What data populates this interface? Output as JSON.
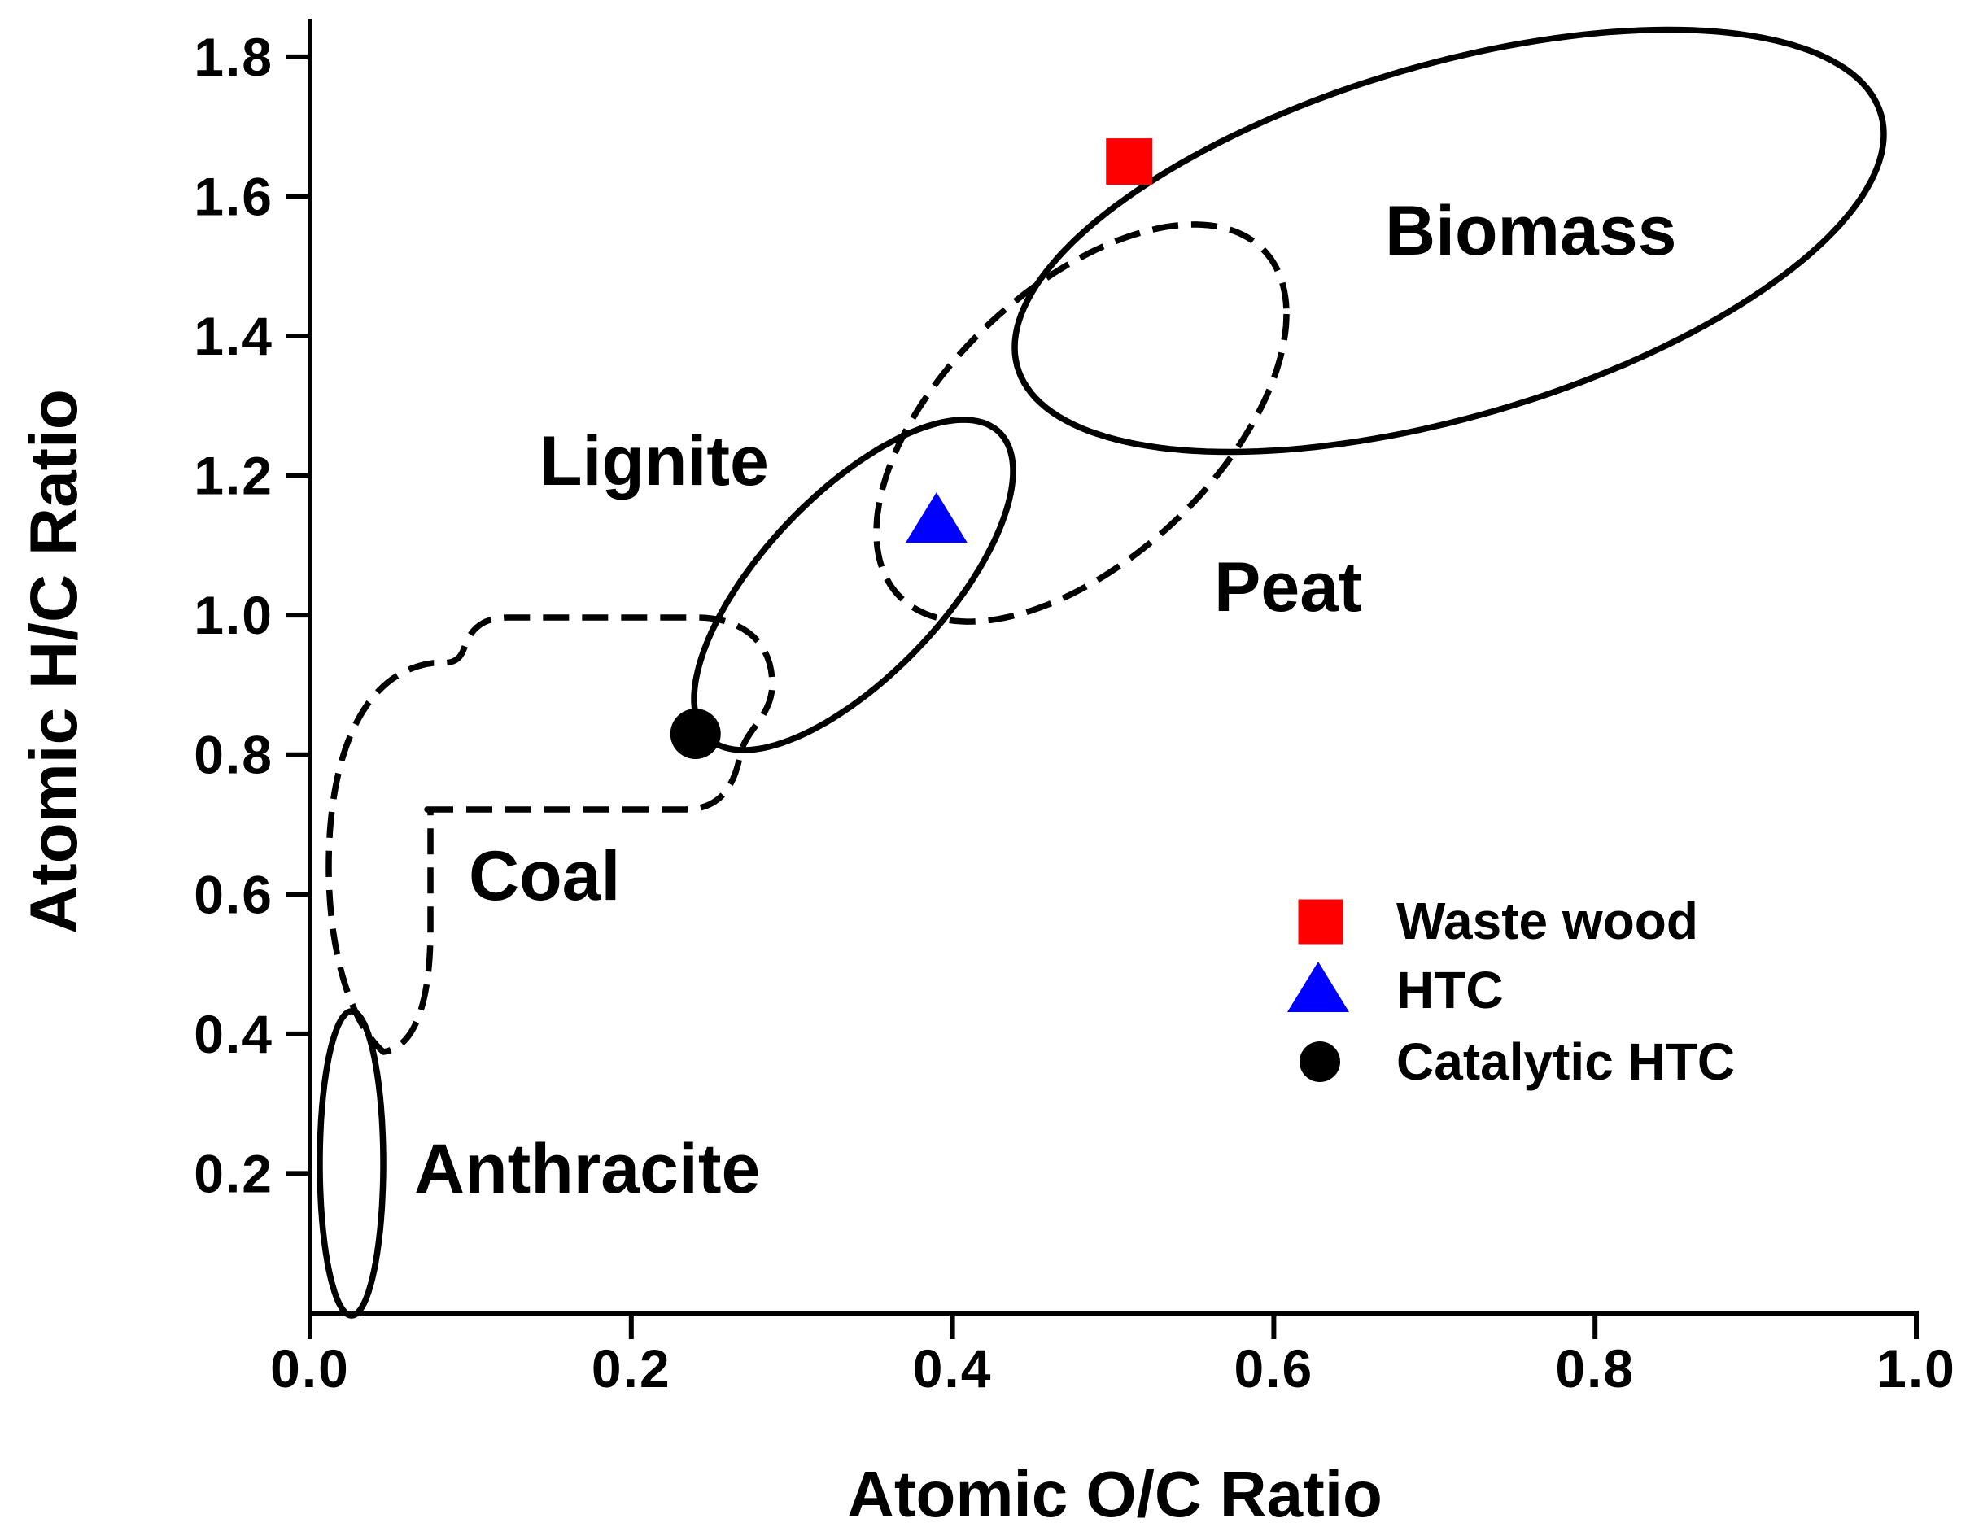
{
  "chart_data": {
    "type": "scatter",
    "xlabel": "Atomic O/C Ratio",
    "ylabel": "Atomic H/C Ratio",
    "xlim": [
      0,
      1.0
    ],
    "ylim": [
      0,
      1.85
    ],
    "x_ticks": [
      "0.0",
      "0.2",
      "0.4",
      "0.6",
      "0.8",
      "1.0"
    ],
    "y_ticks": [
      "0.2",
      "0.4",
      "0.6",
      "0.8",
      "1.0",
      "1.2",
      "1.4",
      "1.6",
      "1.8"
    ],
    "grid": false,
    "legend_position": "lower-right",
    "series": [
      {
        "name": "Waste wood",
        "marker": "square",
        "color": "#ff0000",
        "x": [
          0.51
        ],
        "y": [
          1.65
        ]
      },
      {
        "name": "HTC",
        "marker": "triangle",
        "color": "#0000ff",
        "x": [
          0.39
        ],
        "y": [
          1.14
        ]
      },
      {
        "name": "Catalytic HTC",
        "marker": "circle",
        "color": "#000000",
        "x": [
          0.24
        ],
        "y": [
          0.83
        ]
      }
    ],
    "regions": [
      {
        "label": "Biomass",
        "line": "solid"
      },
      {
        "label": "Peat",
        "line": "dashed"
      },
      {
        "label": "Lignite",
        "line": "solid"
      },
      {
        "label": "Coal",
        "line": "dashed"
      },
      {
        "label": "Anthracite",
        "line": "solid"
      }
    ]
  }
}
